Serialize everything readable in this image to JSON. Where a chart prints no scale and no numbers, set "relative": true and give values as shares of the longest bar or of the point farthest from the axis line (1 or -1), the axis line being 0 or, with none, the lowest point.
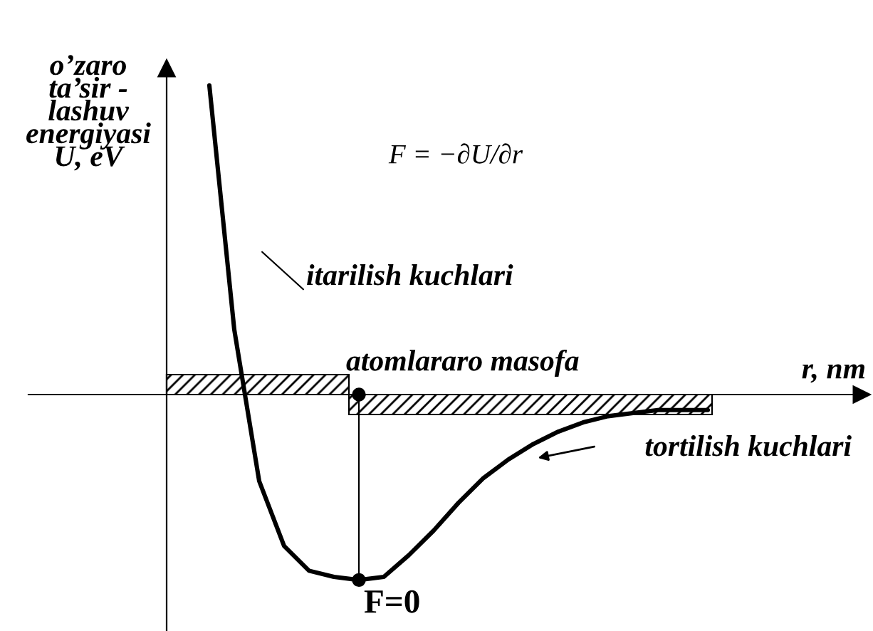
{
  "chart_data": {
    "type": "line",
    "relative": true,
    "xlabel": "r, nm",
    "ylabel": "o’zaro\nta’sir -\nlashuv\nenergiyasi\nU, eV",
    "categories": [
      null,
      null,
      null,
      null,
      null,
      null,
      null,
      null,
      null,
      null,
      null,
      null,
      null,
      null,
      null,
      null,
      null,
      null,
      null,
      null,
      null
    ],
    "series": [
      {
        "color": "#000000",
        "values": [
          1.0,
          0.21,
          -0.28,
          -0.49,
          -0.57,
          -0.59,
          -0.6,
          -0.59,
          -0.52,
          -0.44,
          -0.35,
          -0.27,
          -0.21,
          -0.16,
          -0.12,
          -0.09,
          -0.07,
          -0.06,
          -0.05,
          -0.05,
          -0.05
        ]
      }
    ],
    "annotations": [
      "F = −∂U/∂r",
      "itarilish kuchlari",
      "atomlararo masofa",
      "tortilish kuchlari",
      "F=0"
    ],
    "legend": false
  }
}
